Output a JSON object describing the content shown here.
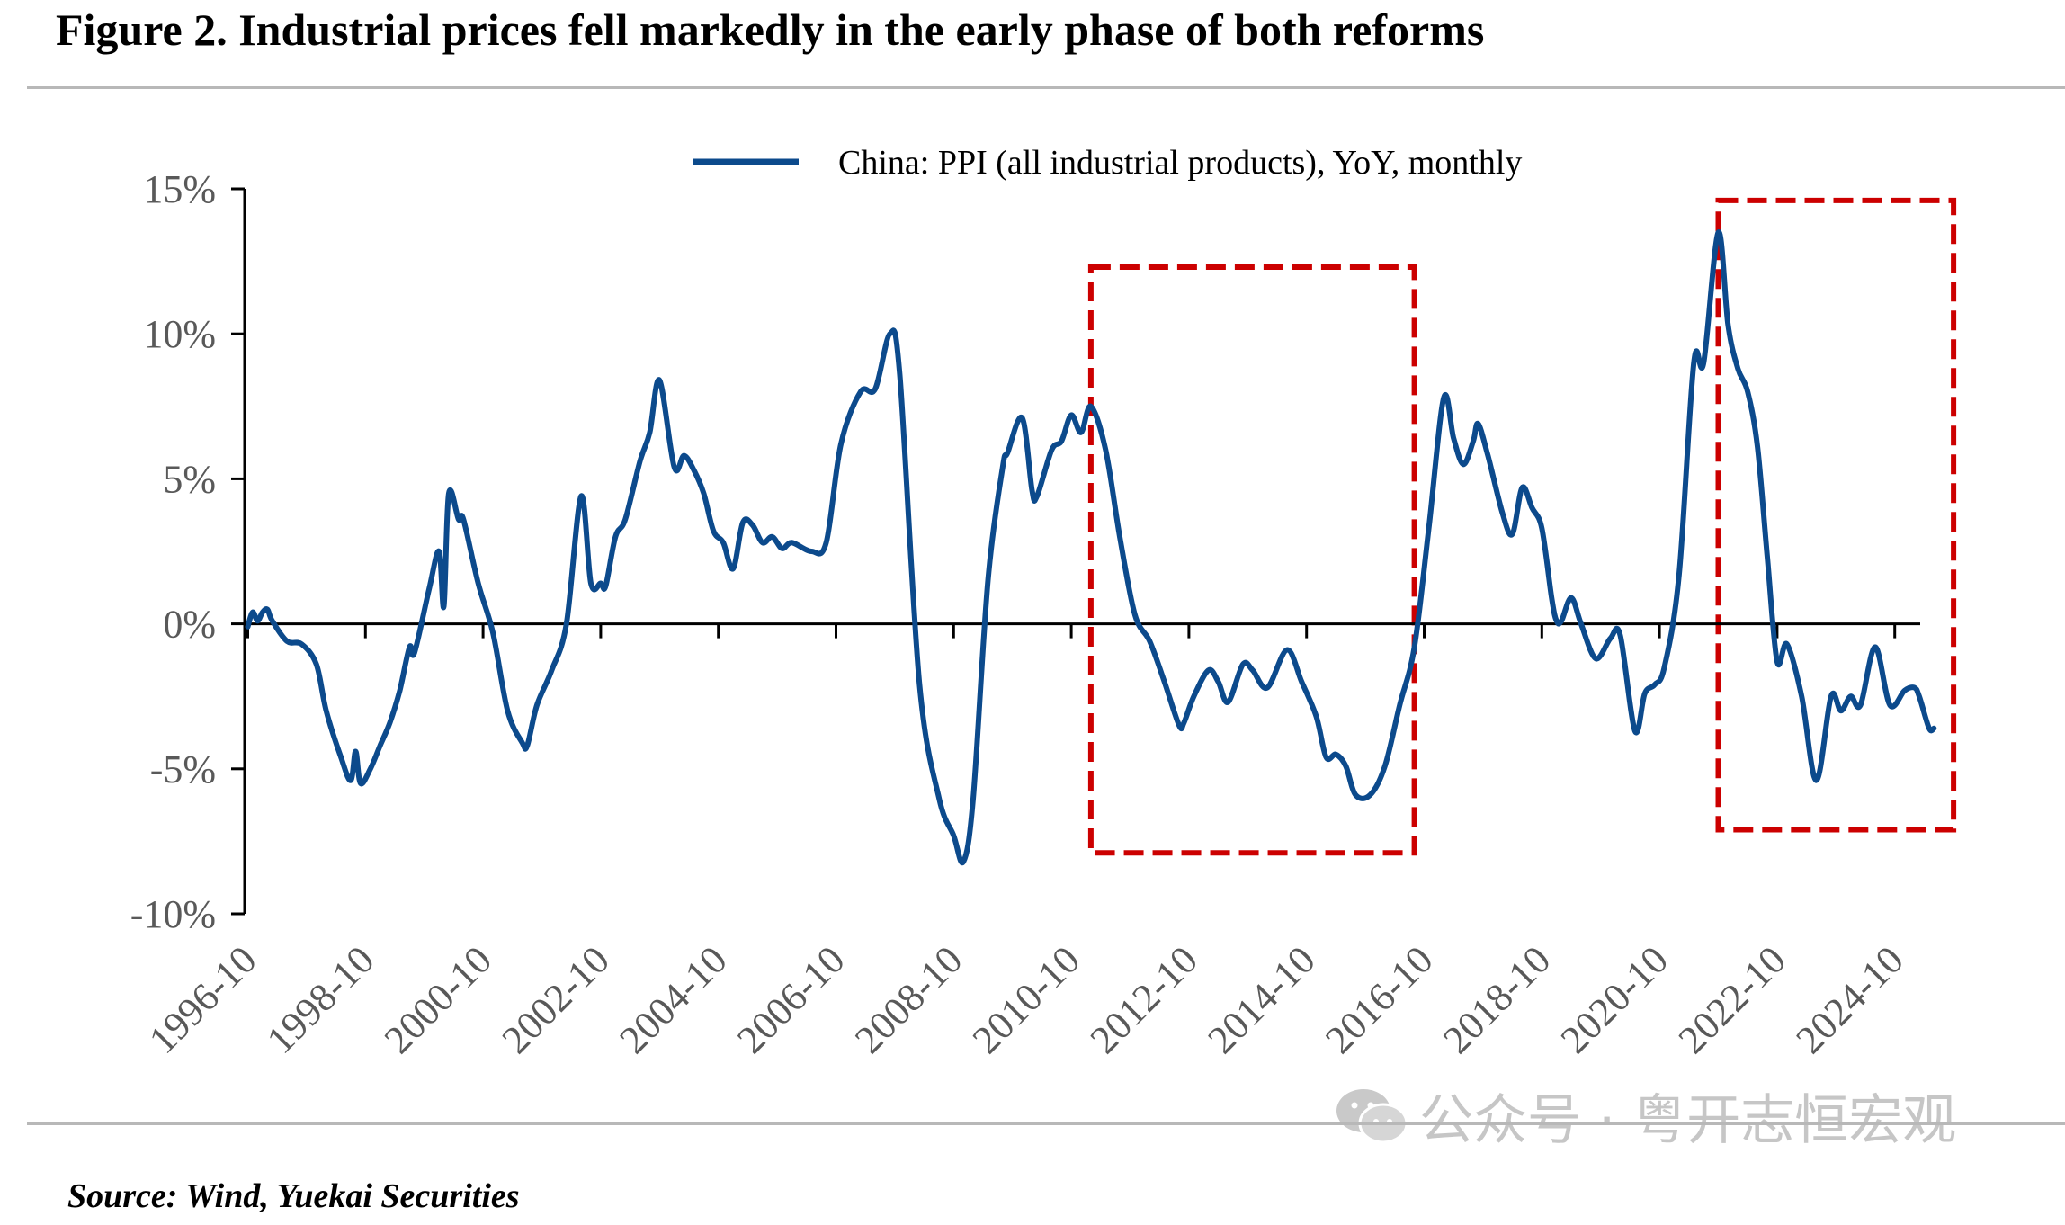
{
  "title": "Figure 2. Industrial prices fell markedly in the early phase of both reforms",
  "source": "Source: Wind, Yuekai Securities",
  "watermark": {
    "text": "公众号 · 粤开志恒宏观",
    "icon": "wechat-icon"
  },
  "colors": {
    "series": "#0c4a8c",
    "highlight_box": "#cc0000",
    "axis": "#000000",
    "tick_text": "#595959",
    "rule": "#b8b8b8"
  },
  "chart_data": {
    "type": "line",
    "ylim": [
      -10,
      15
    ],
    "y_ticks": [
      15,
      10,
      5,
      0,
      -5,
      -10
    ],
    "y_tick_labels": [
      "15%",
      "10%",
      "5%",
      "0%",
      "-5%",
      "-10%"
    ],
    "x_tick_labels": [
      "1996-10",
      "1998-10",
      "2000-10",
      "2002-10",
      "2004-10",
      "2006-10",
      "2008-10",
      "2010-10",
      "2012-10",
      "2014-10",
      "2016-10",
      "2018-10",
      "2020-10",
      "2022-10",
      "2024-10"
    ],
    "legend": {
      "position": "top-center"
    },
    "series": [
      {
        "name": "China: PPI (all industrial products), YoY, monthly",
        "points": [
          [
            "1996-10",
            -0.1
          ],
          [
            "1996-11",
            0.4
          ],
          [
            "1996-12",
            0.1
          ],
          [
            "1997-01",
            0.4
          ],
          [
            "1997-02",
            0.5
          ],
          [
            "1997-03",
            0.1
          ],
          [
            "1997-06",
            -0.6
          ],
          [
            "1997-09",
            -0.7
          ],
          [
            "1997-12",
            -1.4
          ],
          [
            "1998-02",
            -3.0
          ],
          [
            "1998-05",
            -4.6
          ],
          [
            "1998-07",
            -5.4
          ],
          [
            "1998-08",
            -4.4
          ],
          [
            "1998-09",
            -5.5
          ],
          [
            "1998-11",
            -5.0
          ],
          [
            "1999-01",
            -4.2
          ],
          [
            "1999-03",
            -3.4
          ],
          [
            "1999-05",
            -2.3
          ],
          [
            "1999-07",
            -0.8
          ],
          [
            "1999-08",
            -1.0
          ],
          [
            "1999-11",
            1.2
          ],
          [
            "2000-01",
            2.5
          ],
          [
            "2000-02",
            0.6
          ],
          [
            "2000-03",
            4.5
          ],
          [
            "2000-05",
            3.6
          ],
          [
            "2000-06",
            3.6
          ],
          [
            "2000-09",
            1.4
          ],
          [
            "2000-12",
            -0.3
          ],
          [
            "2001-03",
            -3.0
          ],
          [
            "2001-06",
            -4.1
          ],
          [
            "2001-07",
            -4.2
          ],
          [
            "2001-09",
            -2.8
          ],
          [
            "2001-12",
            -1.6
          ],
          [
            "2002-03",
            0.0
          ],
          [
            "2002-06",
            4.4
          ],
          [
            "2002-08",
            1.4
          ],
          [
            "2002-10",
            1.4
          ],
          [
            "2002-11",
            1.3
          ],
          [
            "2003-01",
            3.0
          ],
          [
            "2003-03",
            3.6
          ],
          [
            "2003-06",
            5.6
          ],
          [
            "2003-08",
            6.6
          ],
          [
            "2003-10",
            8.4
          ],
          [
            "2004-01",
            5.4
          ],
          [
            "2004-03",
            5.8
          ],
          [
            "2004-05",
            5.3
          ],
          [
            "2004-07",
            4.5
          ],
          [
            "2004-09",
            3.2
          ],
          [
            "2004-11",
            2.8
          ],
          [
            "2005-01",
            1.9
          ],
          [
            "2005-03",
            3.5
          ],
          [
            "2005-05",
            3.4
          ],
          [
            "2005-07",
            2.8
          ],
          [
            "2005-09",
            3.0
          ],
          [
            "2005-11",
            2.6
          ],
          [
            "2006-01",
            2.8
          ],
          [
            "2006-05",
            2.5
          ],
          [
            "2006-08",
            2.8
          ],
          [
            "2006-11",
            6.2
          ],
          [
            "2007-03",
            8.0
          ],
          [
            "2007-06",
            8.1
          ],
          [
            "2007-09",
            10.0
          ],
          [
            "2007-11",
            8.6
          ],
          [
            "2008-03",
            -2.0
          ],
          [
            "2008-07",
            -6.0
          ],
          [
            "2008-10",
            -7.3
          ],
          [
            "2008-12",
            -8.2
          ],
          [
            "2009-02",
            -6.0
          ],
          [
            "2009-05",
            1.5
          ],
          [
            "2009-08",
            5.4
          ],
          [
            "2009-09",
            5.9
          ],
          [
            "2009-12",
            7.1
          ],
          [
            "2010-02",
            4.6
          ],
          [
            "2010-03",
            4.4
          ],
          [
            "2010-06",
            6.0
          ],
          [
            "2010-08",
            6.3
          ],
          [
            "2010-10",
            7.2
          ],
          [
            "2010-12",
            6.6
          ],
          [
            "2011-02",
            7.5
          ],
          [
            "2011-05",
            6.0
          ],
          [
            "2011-08",
            2.9
          ],
          [
            "2011-11",
            0.3
          ],
          [
            "2012-02",
            -0.6
          ],
          [
            "2012-05",
            -2.0
          ],
          [
            "2012-08",
            -3.5
          ],
          [
            "2012-09",
            -3.4
          ],
          [
            "2012-11",
            -2.5
          ],
          [
            "2013-02",
            -1.6
          ],
          [
            "2013-04",
            -2.0
          ],
          [
            "2013-06",
            -2.7
          ],
          [
            "2013-09",
            -1.4
          ],
          [
            "2013-11",
            -1.6
          ],
          [
            "2014-02",
            -2.2
          ],
          [
            "2014-06",
            -0.9
          ],
          [
            "2014-09",
            -2.0
          ],
          [
            "2014-12",
            -3.2
          ],
          [
            "2015-02",
            -4.6
          ],
          [
            "2015-04",
            -4.5
          ],
          [
            "2015-06",
            -4.9
          ],
          [
            "2015-08",
            -5.9
          ],
          [
            "2015-11",
            -5.9
          ],
          [
            "2016-02",
            -4.9
          ],
          [
            "2016-05",
            -2.8
          ],
          [
            "2016-08",
            -0.8
          ],
          [
            "2016-11",
            3.4
          ],
          [
            "2017-02",
            7.8
          ],
          [
            "2017-04",
            6.4
          ],
          [
            "2017-06",
            5.5
          ],
          [
            "2017-08",
            6.3
          ],
          [
            "2017-09",
            6.9
          ],
          [
            "2017-11",
            5.8
          ],
          [
            "2018-02",
            3.8
          ],
          [
            "2018-04",
            3.1
          ],
          [
            "2018-06",
            4.7
          ],
          [
            "2018-08",
            4.0
          ],
          [
            "2018-10",
            3.3
          ],
          [
            "2018-12",
            0.9
          ],
          [
            "2019-01",
            0.1
          ],
          [
            "2019-02",
            0.1
          ],
          [
            "2019-04",
            0.9
          ],
          [
            "2019-06",
            0.0
          ],
          [
            "2019-09",
            -1.2
          ],
          [
            "2019-12",
            -0.5
          ],
          [
            "2020-02",
            -0.4
          ],
          [
            "2020-05",
            -3.7
          ],
          [
            "2020-07",
            -2.4
          ],
          [
            "2020-09",
            -2.1
          ],
          [
            "2020-11",
            -1.5
          ],
          [
            "2021-02",
            1.7
          ],
          [
            "2021-05",
            9.0
          ],
          [
            "2021-07",
            9.0
          ],
          [
            "2021-10",
            13.5
          ],
          [
            "2021-12",
            10.3
          ],
          [
            "2022-02",
            8.8
          ],
          [
            "2022-04",
            8.0
          ],
          [
            "2022-06",
            6.1
          ],
          [
            "2022-08",
            2.3
          ],
          [
            "2022-10",
            -1.3
          ],
          [
            "2022-12",
            -0.7
          ],
          [
            "2023-03",
            -2.5
          ],
          [
            "2023-06",
            -5.4
          ],
          [
            "2023-09",
            -2.5
          ],
          [
            "2023-11",
            -3.0
          ],
          [
            "2024-01",
            -2.5
          ],
          [
            "2024-03",
            -2.8
          ],
          [
            "2024-06",
            -0.8
          ],
          [
            "2024-09",
            -2.8
          ],
          [
            "2024-12",
            -2.3
          ],
          [
            "2025-02",
            -2.2
          ],
          [
            "2025-03",
            -2.5
          ],
          [
            "2025-05",
            -3.6
          ],
          [
            "2025-06",
            -3.6
          ]
        ]
      }
    ],
    "annotations": [
      {
        "type": "dashed-box",
        "from": "2011-02",
        "to": "2016-08",
        "y_range": [
          -7.9,
          12.3
        ]
      },
      {
        "type": "dashed-box",
        "from": "2021-10",
        "to": "2025-10",
        "y_range": [
          -7.1,
          14.6
        ]
      }
    ]
  }
}
